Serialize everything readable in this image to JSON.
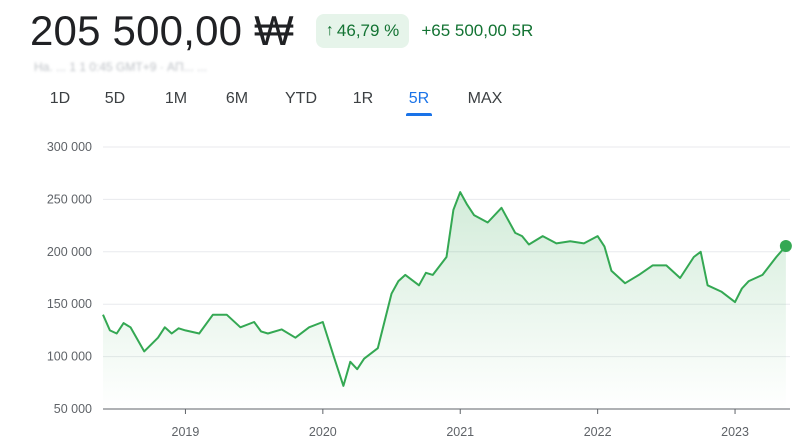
{
  "header": {
    "price": "205 500,00 ₩",
    "change_percent": "46,79 %",
    "change_arrow": "arrow-up-icon",
    "change_abs": "+65 500,00 5R",
    "subline": "Ha. ... 1 1 0:45 GMT+9 · ΑΠ... ..."
  },
  "tabs": [
    {
      "label": "1D",
      "active": false
    },
    {
      "label": "5D",
      "active": false
    },
    {
      "label": "1M",
      "active": false
    },
    {
      "label": "6M",
      "active": false
    },
    {
      "label": "YTD",
      "active": false
    },
    {
      "label": "1R",
      "active": false
    },
    {
      "label": "5R",
      "active": true
    },
    {
      "label": "MAX",
      "active": false
    }
  ],
  "colors": {
    "line": "#34a853",
    "accent": "#1a73e8",
    "positive": "#137333"
  },
  "chart_data": {
    "type": "area",
    "y_ticks": [
      "300 000",
      "250 000",
      "200 000",
      "150 000",
      "100 000",
      "50 000"
    ],
    "y_tick_values": [
      300000,
      250000,
      200000,
      150000,
      100000,
      50000
    ],
    "x_ticks": [
      "2019",
      "2020",
      "2021",
      "2022",
      "2023"
    ],
    "x_tick_values": [
      2019,
      2020,
      2021,
      2022,
      2023
    ],
    "ylim": [
      50000,
      300000
    ],
    "xlim": [
      2018.4,
      2023.4
    ],
    "grid": true,
    "series": [
      {
        "x": [
          2018.4,
          2018.45,
          2018.5,
          2018.55,
          2018.6,
          2018.7,
          2018.8,
          2018.85,
          2018.9,
          2018.95,
          2019.0,
          2019.1,
          2019.2,
          2019.3,
          2019.4,
          2019.5,
          2019.55,
          2019.6,
          2019.7,
          2019.8,
          2019.9,
          2020.0,
          2020.08,
          2020.15,
          2020.2,
          2020.25,
          2020.3,
          2020.4,
          2020.5,
          2020.55,
          2020.6,
          2020.7,
          2020.75,
          2020.8,
          2020.9,
          2020.95,
          2021.0,
          2021.05,
          2021.1,
          2021.2,
          2021.3,
          2021.4,
          2021.45,
          2021.5,
          2021.6,
          2021.7,
          2021.8,
          2021.9,
          2022.0,
          2022.05,
          2022.1,
          2022.2,
          2022.3,
          2022.4,
          2022.5,
          2022.6,
          2022.7,
          2022.75,
          2022.8,
          2022.9,
          2023.0,
          2023.05,
          2023.1,
          2023.2,
          2023.3,
          2023.37
        ],
        "y": [
          140000,
          125000,
          122000,
          132000,
          128000,
          105000,
          118000,
          128000,
          122000,
          127000,
          125000,
          122000,
          140000,
          140000,
          128000,
          133000,
          124000,
          122000,
          126000,
          118000,
          128000,
          133000,
          100000,
          72000,
          95000,
          88000,
          98000,
          108000,
          160000,
          172000,
          178000,
          168000,
          180000,
          178000,
          195000,
          240000,
          257000,
          245000,
          235000,
          228000,
          242000,
          218000,
          215000,
          207000,
          215000,
          208000,
          210000,
          208000,
          215000,
          205000,
          182000,
          170000,
          178000,
          187000,
          187000,
          175000,
          195000,
          200000,
          168000,
          162000,
          152000,
          165000,
          172000,
          178000,
          195000,
          205500
        ]
      }
    ]
  }
}
